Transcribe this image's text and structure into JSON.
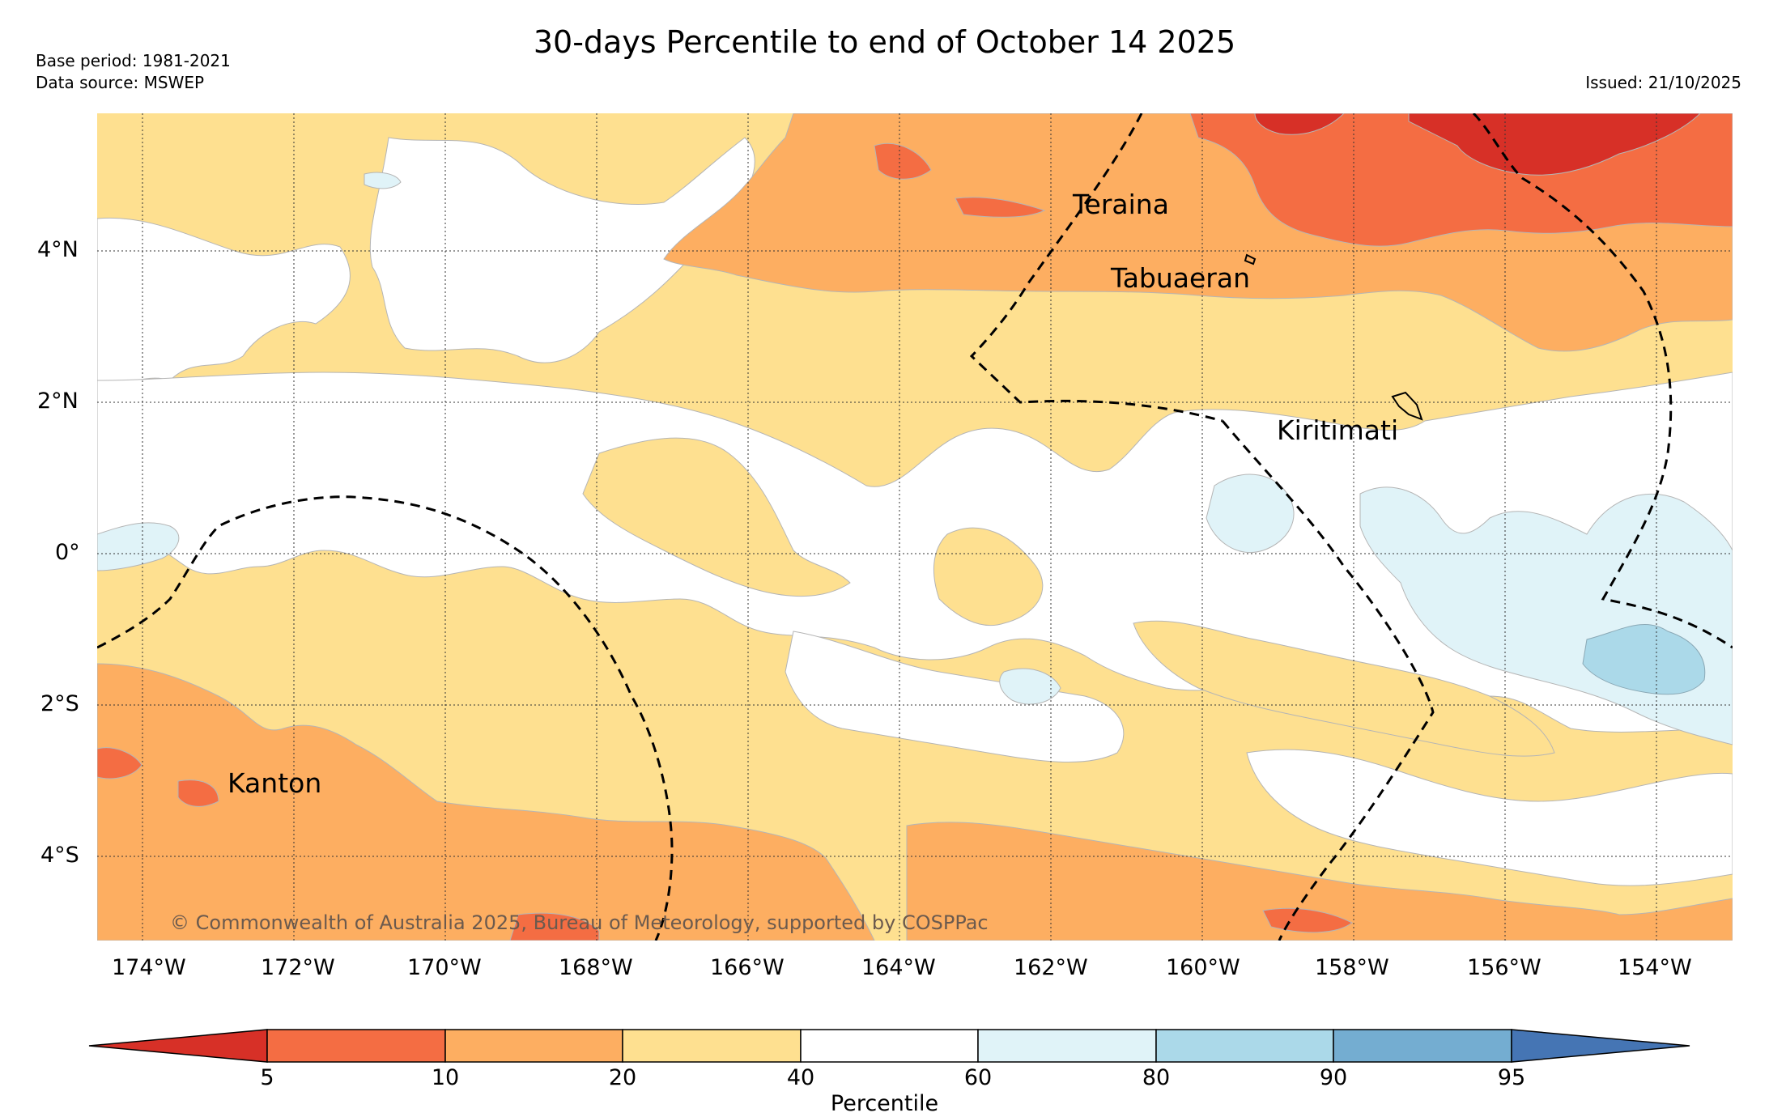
{
  "title": "30-days Percentile to end of October 14 2025",
  "base_period": "Base period: 1981-2021",
  "data_source": "Data source: MSWEP",
  "issued": "Issued: 21/10/2025",
  "copyright": "© Commonwealth of Australia 2025, Bureau of Meteorology, supported by COSPPac",
  "places": [
    {
      "name": "Teraina",
      "lon": -161.6,
      "lat": 4.6
    },
    {
      "name": "Tabuaeran",
      "lon": -161.0,
      "lat": 3.6
    },
    {
      "name": "Kiritimati",
      "lon": -159.0,
      "lat": 1.6
    },
    {
      "name": "Kanton",
      "lon": -172.0,
      "lat": -3.1
    }
  ],
  "lon_ticks": [
    "174°W",
    "172°W",
    "170°W",
    "168°W",
    "166°W",
    "164°W",
    "162°W",
    "160°W",
    "158°W",
    "156°W",
    "154°W"
  ],
  "lat_ticks": [
    "4°N",
    "2°N",
    "0°",
    "2°S",
    "4°S"
  ],
  "legend": {
    "title": "Percentile",
    "boundaries": [
      "5",
      "10",
      "20",
      "40",
      "60",
      "80",
      "90",
      "95"
    ],
    "colors": [
      "#d73027",
      "#f46d43",
      "#fdae61",
      "#fee090",
      "#ffffff",
      "#e0f3f8",
      "#abd9e9",
      "#74add1",
      "#4575b4"
    ]
  },
  "colors": {
    "below5": "#d73027",
    "p5_10": "#f46d43",
    "p10_20": "#fdae61",
    "p20_40": "#fee090",
    "p40_60": "#ffffff",
    "p60_80": "#e0f3f8",
    "p80_90": "#abd9e9"
  }
}
